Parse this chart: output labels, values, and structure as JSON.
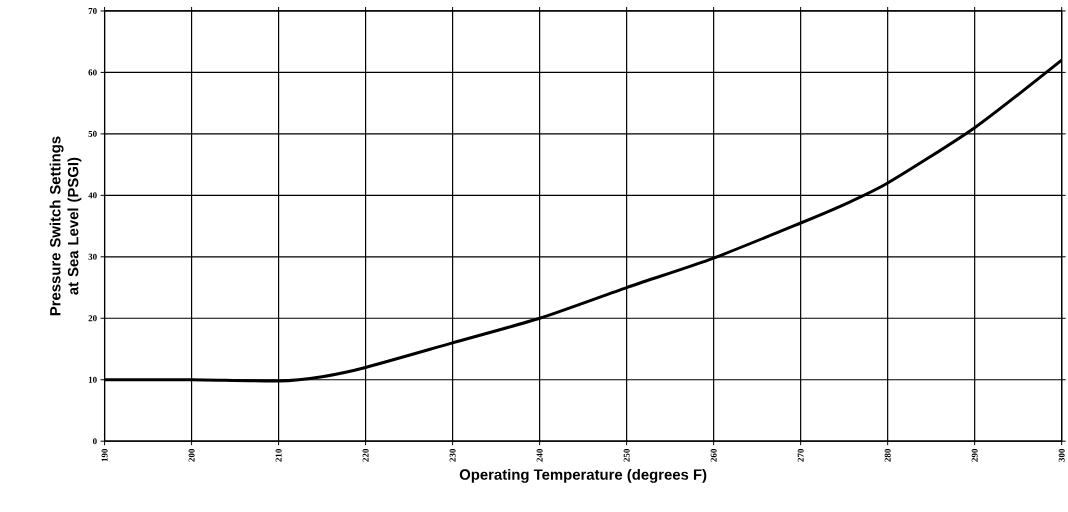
{
  "chart_data": {
    "type": "line",
    "xlabel": "Operating Temperature (degrees F)",
    "ylabel": "Pressure Switch Settings at Sea Level (PSGI)",
    "x": [
      190,
      200,
      210,
      215,
      220,
      230,
      240,
      250,
      260,
      270,
      275,
      280,
      290,
      300
    ],
    "series": [
      {
        "color": "#000000",
        "values": [
          10,
          10,
          9.8,
          10.5,
          12,
          16,
          20,
          25,
          29.8,
          35.5,
          38.5,
          42,
          51,
          62
        ]
      }
    ],
    "xlim": [
      190,
      300
    ],
    "ylim": [
      0,
      70
    ],
    "xticks": [
      190,
      200,
      210,
      220,
      230,
      240,
      250,
      260,
      270,
      280,
      290,
      300
    ],
    "yticks": [
      0,
      10,
      20,
      30,
      40,
      50,
      60,
      70
    ],
    "grid": true,
    "marker": "none",
    "line_style": "solid"
  }
}
